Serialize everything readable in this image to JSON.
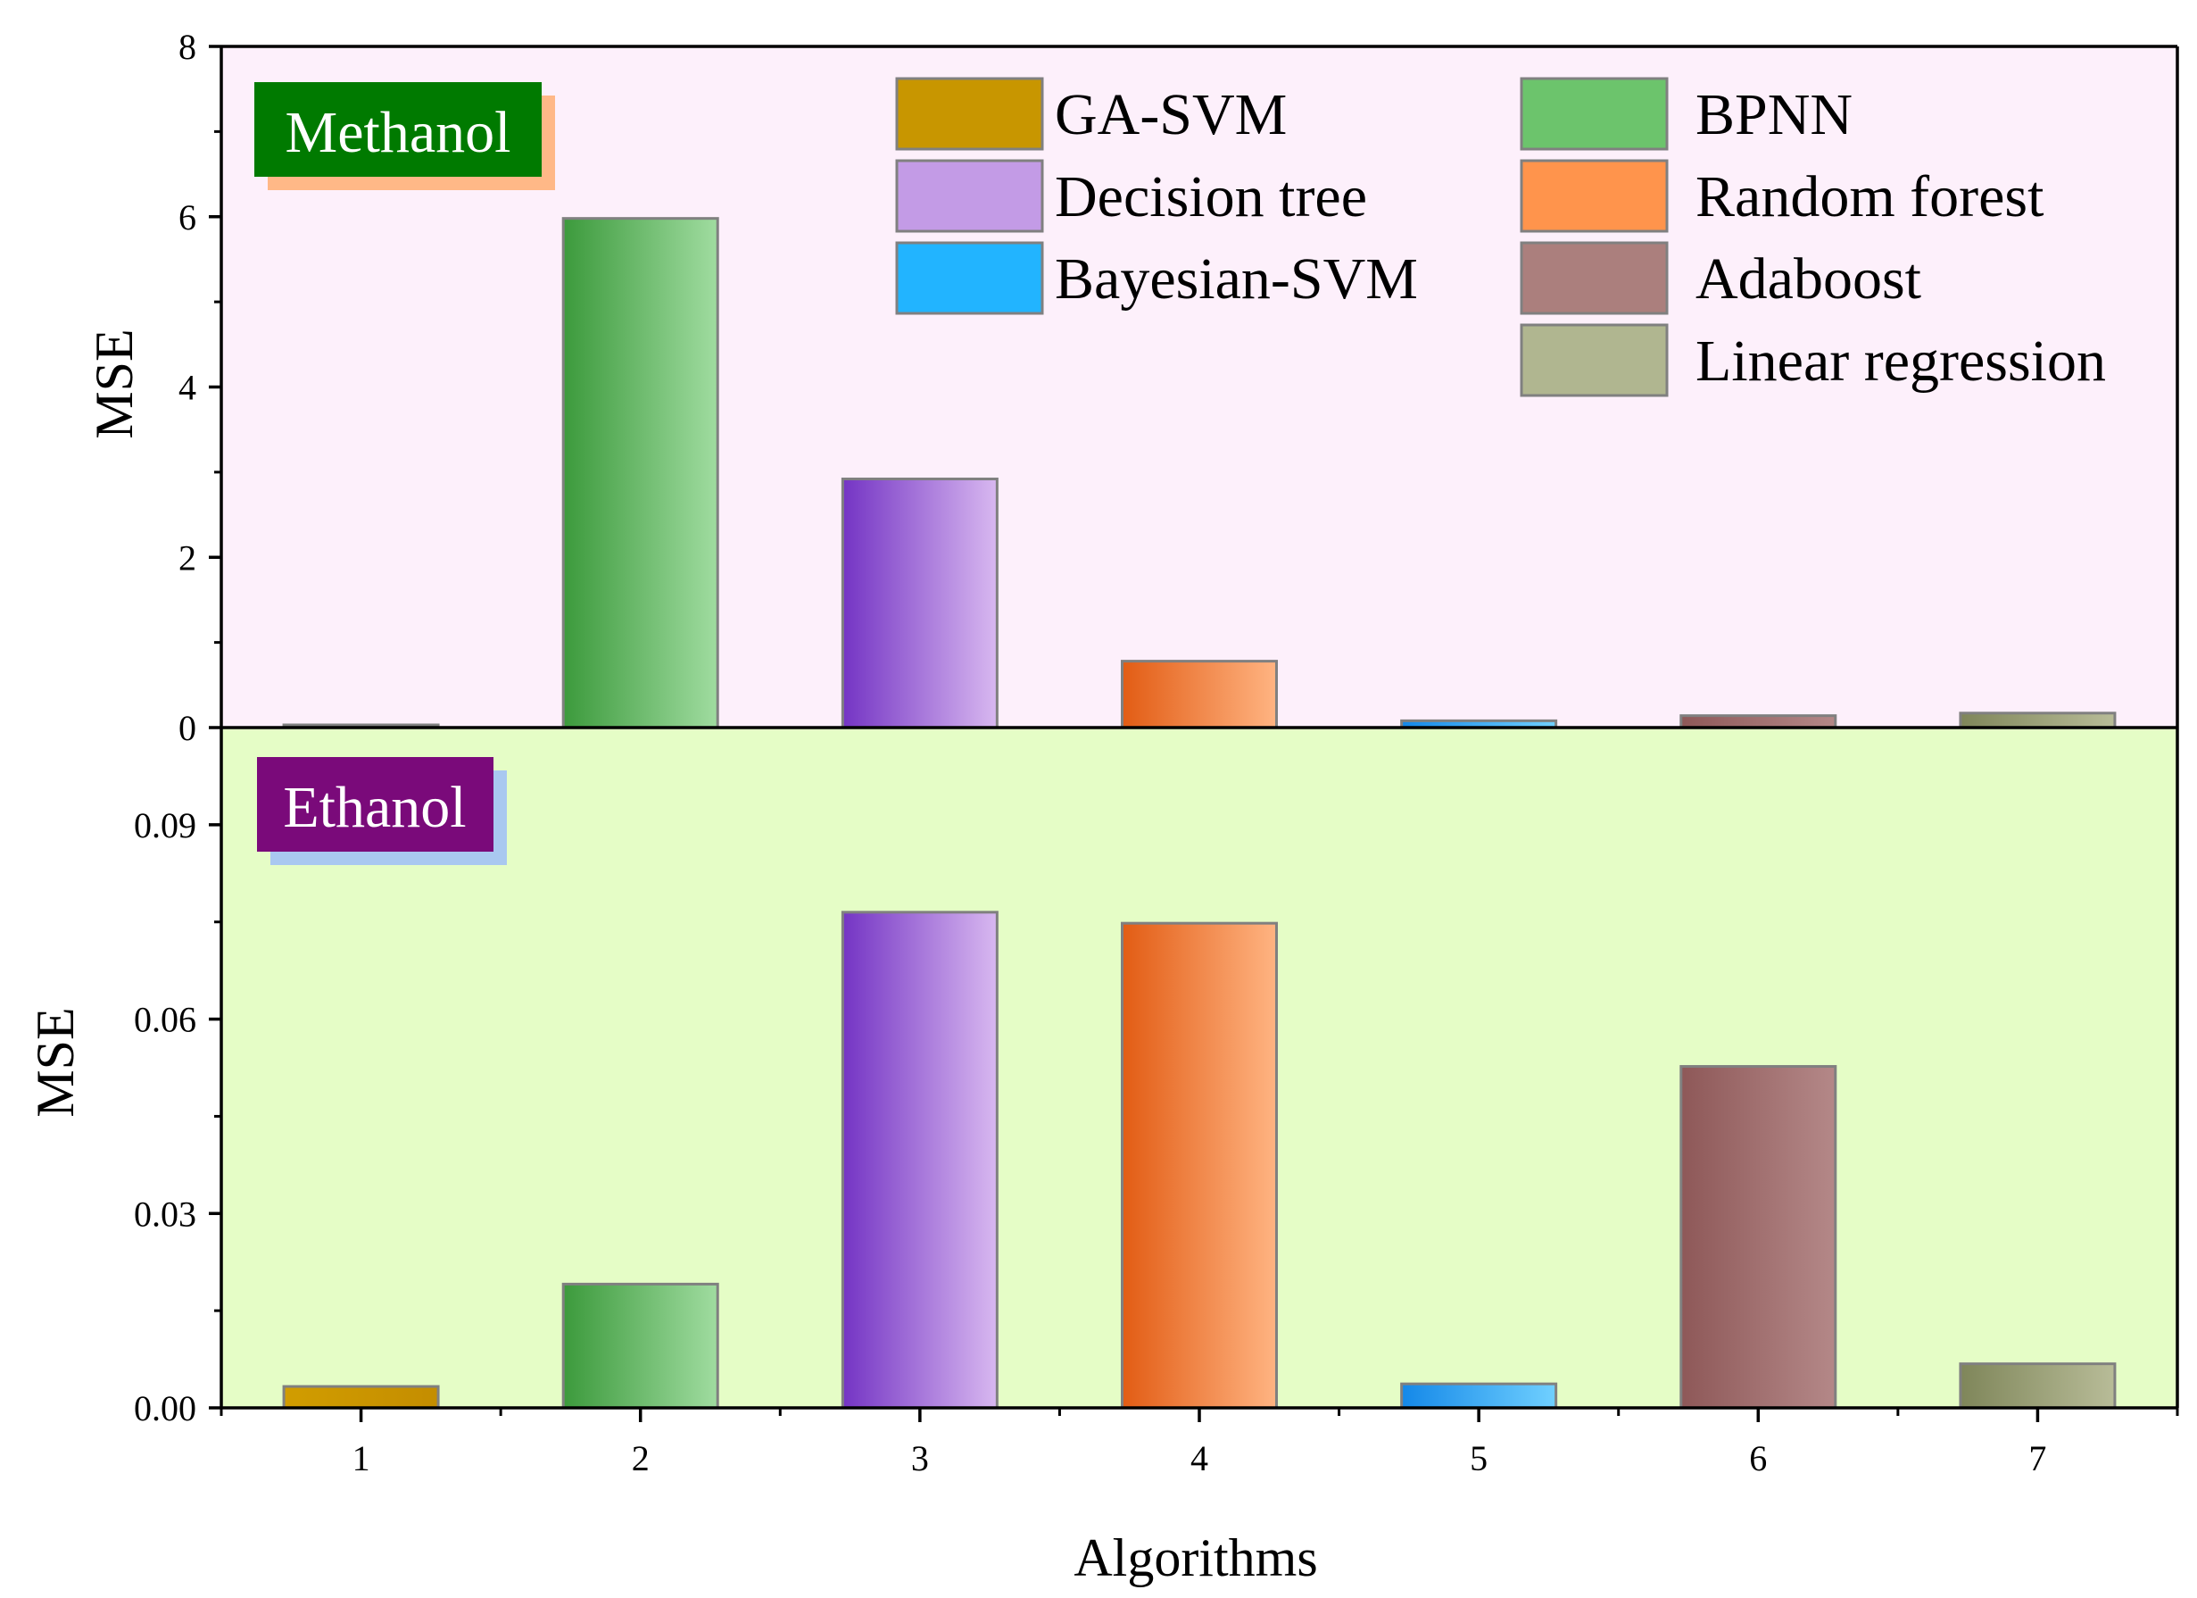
{
  "legend": [
    {
      "name": "GA-SVM",
      "color": "#c89600"
    },
    {
      "name": "Decision tree",
      "color": "#c39be6"
    },
    {
      "name": "Bayesian-SVM",
      "color": "#22b4ff"
    },
    {
      "name": "BPNN",
      "color": "#6cc46c"
    },
    {
      "name": "Random forest",
      "color": "#ff944c"
    },
    {
      "name": "Adaboost",
      "color": "#ab7f7d"
    },
    {
      "name": "Linear regression",
      "color": "#b0b690"
    }
  ],
  "chart_data": [
    {
      "type": "bar",
      "panel_label": "Methanol",
      "panel_label_color": "#007a00",
      "panel_label_shadow": "#ffb887",
      "background": "#fdf0fb",
      "categories": [
        "1",
        "2",
        "3",
        "4",
        "5",
        "6",
        "7"
      ],
      "values": [
        0.02,
        5.98,
        2.92,
        0.78,
        0.08,
        0.14,
        0.17
      ],
      "ylim": [
        0,
        8
      ],
      "yticks": [
        "0",
        "2",
        "4",
        "6",
        "8"
      ],
      "ylabel": "MSE"
    },
    {
      "type": "bar",
      "panel_label": "Ethanol",
      "panel_label_color": "#7a0a7a",
      "panel_label_shadow": "#a9c8f0",
      "background": "#e5fdc6",
      "categories": [
        "1",
        "2",
        "3",
        "4",
        "5",
        "6",
        "7"
      ],
      "values": [
        0.0033,
        0.0191,
        0.0765,
        0.0748,
        0.0037,
        0.0527,
        0.0068
      ],
      "ylim": [
        0,
        0.105
      ],
      "yticks": [
        "0.00",
        "0.03",
        "0.06",
        "0.09"
      ],
      "ylabel": "MSE"
    }
  ],
  "xlabel": "Algorithms",
  "bar_colors": [
    {
      "dark": "#d19d00",
      "light": "#c48d00"
    },
    {
      "dark": "#3c9a3c",
      "light": "#a0dca0"
    },
    {
      "dark": "#7434c4",
      "light": "#d8b8f0"
    },
    {
      "dark": "#e25c14",
      "light": "#ffb482"
    },
    {
      "dark": "#1488e8",
      "light": "#70d0ff"
    },
    {
      "dark": "#8e5858",
      "light": "#b48888"
    },
    {
      "dark": "#7f865a",
      "light": "#b8bc98"
    }
  ]
}
